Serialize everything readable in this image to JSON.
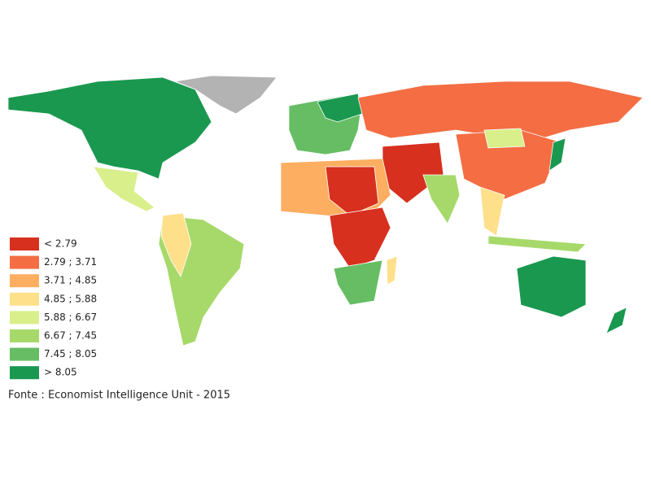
{
  "legend": {
    "items": [
      {
        "label": "< 2.79",
        "color": "#d7301f"
      },
      {
        "label": "2.79 ; 3.71",
        "color": "#f46d43"
      },
      {
        "label": "3.71 ; 4.85",
        "color": "#fdae61"
      },
      {
        "label": "4.85 ; 5.88",
        "color": "#fee08b"
      },
      {
        "label": "5.88 ; 6.67",
        "color": "#d9ef8b"
      },
      {
        "label": "6.67 ; 7.45",
        "color": "#a6d96a"
      },
      {
        "label": "7.45 ; 8.05",
        "color": "#66bd63"
      },
      {
        "label": "> 8.05",
        "color": "#1a9850"
      }
    ]
  },
  "source": "Fonte : Economist Intelligence Unit - 2015"
}
